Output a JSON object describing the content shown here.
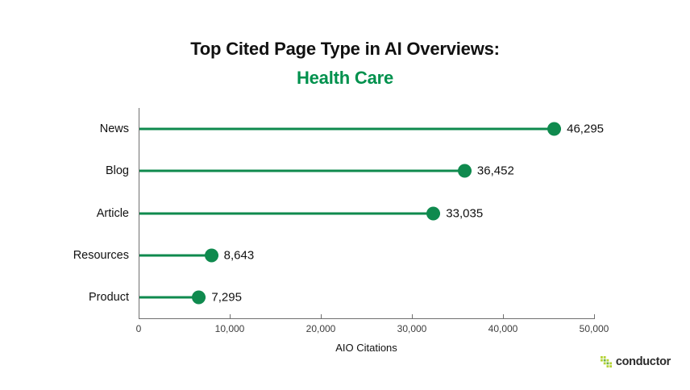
{
  "title": {
    "line1": "Top Cited Page Type in AI Overviews:",
    "line2": "Health Care"
  },
  "chart_data": {
    "type": "bar",
    "variant": "lollipop",
    "orientation": "horizontal",
    "categories": [
      "News",
      "Blog",
      "Article",
      "Resources",
      "Product"
    ],
    "values": [
      46295,
      36452,
      33035,
      8643,
      7295
    ],
    "value_labels": [
      "46,295",
      "36,452",
      "33,035",
      "8,643",
      "7,295"
    ],
    "title": "Top Cited Page Type in AI Overviews: Health Care",
    "xlabel": "AIO Citations",
    "ylabel": "",
    "xlim": [
      0,
      50000
    ],
    "x_ticks": [
      0,
      10000,
      20000,
      30000,
      40000,
      50000
    ],
    "x_tick_labels": [
      "0",
      "10,000",
      "20,000",
      "30,000",
      "40,000",
      "50,000"
    ],
    "grid": false,
    "legend": false,
    "colors": {
      "marker": "#0f8a4e",
      "stem": "#0f8a4e",
      "title_accent": "#00914d",
      "axis": "#6f6f6f",
      "text": "#111111"
    }
  },
  "footer": {
    "brand": "conductor",
    "logo_icon": "conductor-pixel-squares",
    "logo_colors": {
      "light": "#b5d334",
      "dark": "#6db33f"
    }
  }
}
